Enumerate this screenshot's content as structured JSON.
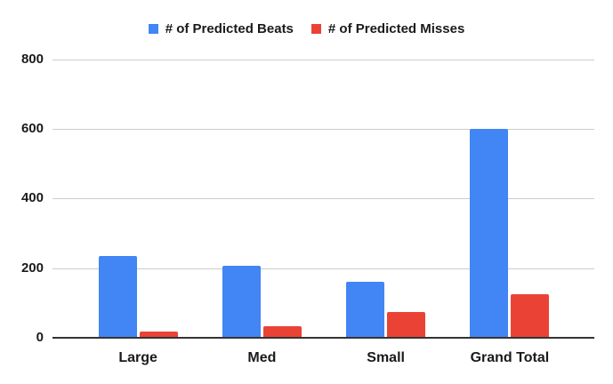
{
  "chart_data": {
    "type": "bar",
    "title": "",
    "categories": [
      "Large",
      "Med",
      "Small",
      "Grand Total"
    ],
    "series": [
      {
        "name": "# of Predicted Beats",
        "color": "#4285F4",
        "values": [
          235,
          206,
          160,
          601
        ]
      },
      {
        "name": "# of Predicted Misses",
        "color": "#EA4335",
        "values": [
          19,
          33,
          74,
          126
        ]
      }
    ],
    "xlabel": "",
    "ylabel": "",
    "ylim": [
      0,
      800
    ],
    "yticks": [
      0,
      200,
      400,
      600,
      800
    ],
    "grid": true,
    "legend_position": "top-center",
    "colors": {
      "gridline": "#cccccc",
      "axis_line": "#333333",
      "text": "#1a1a1a",
      "background": "#ffffff"
    }
  }
}
